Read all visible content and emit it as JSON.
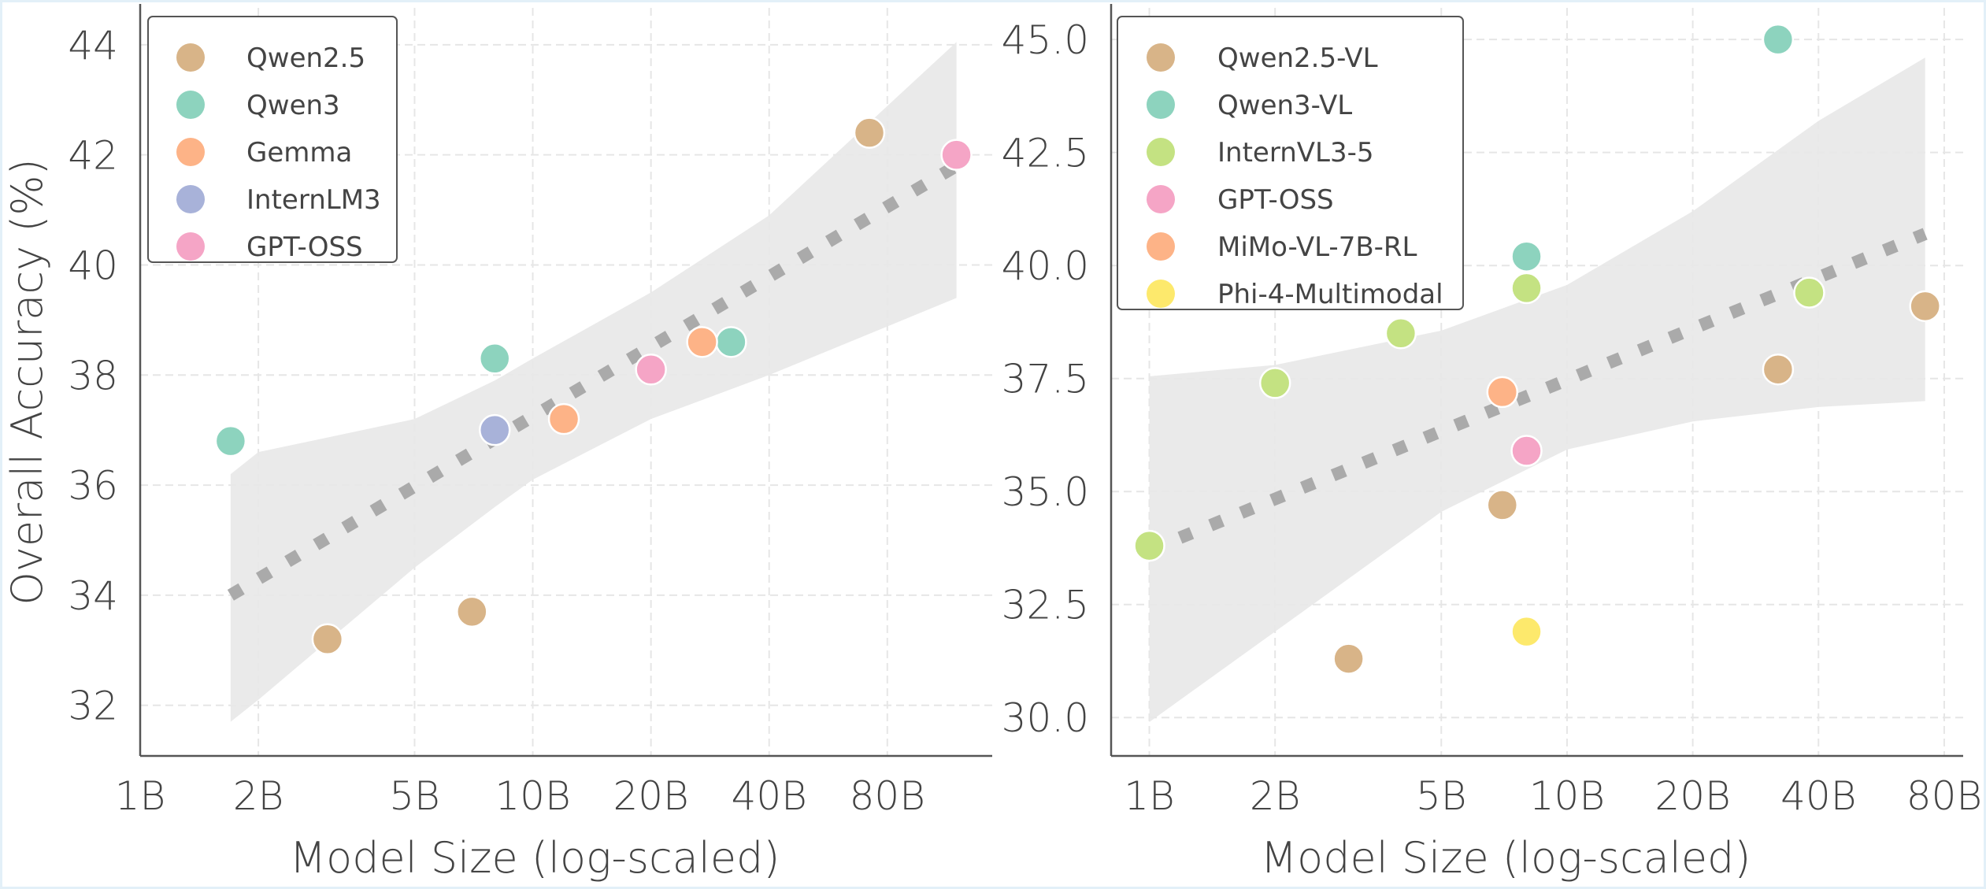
{
  "chart_data": [
    {
      "type": "scatter",
      "xlabel": "Model Size (log-scaled)",
      "ylabel": "Overall Accuracy (%)",
      "xscale": "log",
      "xlim": [
        1,
        148
      ],
      "ylim": [
        31.08,
        44.67
      ],
      "xticks": [
        1,
        2,
        5,
        10,
        20,
        40,
        80
      ],
      "xtick_labels": [
        "1B",
        "2B",
        "5B",
        "10B",
        "20B",
        "40B",
        "80B"
      ],
      "yticks": [
        32,
        34,
        36,
        38,
        40,
        42,
        44
      ],
      "ytick_labels": [
        "32",
        "34",
        "36",
        "38",
        "40",
        "42",
        "44"
      ],
      "grid": true,
      "legend_position": "top-left",
      "series": [
        {
          "name": "Qwen2.5",
          "color": "#d8b488",
          "points": [
            [
              3,
              33.2
            ],
            [
              7,
              33.7
            ],
            [
              72,
              42.4
            ]
          ]
        },
        {
          "name": "Qwen3",
          "color": "#8dd3be",
          "points": [
            [
              1.7,
              36.8
            ],
            [
              8,
              38.3
            ],
            [
              32,
              38.6
            ]
          ]
        },
        {
          "name": "Gemma",
          "color": "#fdb387",
          "points": [
            [
              12,
              37.2
            ],
            [
              27,
              38.6
            ]
          ]
        },
        {
          "name": "InternLM3",
          "color": "#a8b2d9",
          "points": [
            [
              8,
              37.0
            ]
          ]
        },
        {
          "name": "GPT-OSS",
          "color": "#f5a5c6",
          "points": [
            [
              20,
              38.1
            ],
            [
              120,
              42.0
            ]
          ]
        }
      ],
      "trend": {
        "x": [
          1.7,
          120
        ],
        "y": [
          34.0,
          41.8
        ]
      },
      "band": {
        "x": [
          1.7,
          2,
          5,
          8,
          10,
          20,
          40,
          120
        ],
        "lower": [
          31.7,
          32.1,
          34.5,
          35.6,
          36.1,
          37.2,
          38.0,
          39.4
        ],
        "upper": [
          36.2,
          36.6,
          37.2,
          37.9,
          38.3,
          39.5,
          40.9,
          44.05
        ]
      }
    },
    {
      "type": "scatter",
      "xlabel": "Model Size (log-scaled)",
      "ylabel": "",
      "xscale": "log",
      "xlim": [
        0.81,
        88.8
      ],
      "ylim": [
        29.15,
        45.7
      ],
      "xticks": [
        1,
        2,
        5,
        10,
        20,
        40,
        80
      ],
      "xtick_labels": [
        "1B",
        "2B",
        "5B",
        "10B",
        "20B",
        "40B",
        "80B"
      ],
      "yticks": [
        30,
        32.5,
        35,
        37.5,
        40,
        42.5,
        45
      ],
      "ytick_labels": [
        "30.0",
        "32.5",
        "35.0",
        "37.5",
        "40.0",
        "42.5",
        "45.0"
      ],
      "grid": true,
      "legend_position": "top-left",
      "series": [
        {
          "name": "Qwen2.5-VL",
          "color": "#d8b488",
          "points": [
            [
              3,
              31.3
            ],
            [
              7,
              34.7
            ],
            [
              32,
              37.7
            ],
            [
              72,
              39.1
            ]
          ]
        },
        {
          "name": "Qwen3-VL",
          "color": "#8dd3be",
          "points": [
            [
              8,
              40.2
            ],
            [
              32,
              45.0
            ]
          ]
        },
        {
          "name": "InternVL3-5",
          "color": "#c4e282",
          "points": [
            [
              1,
              33.8
            ],
            [
              2,
              37.4
            ],
            [
              4,
              38.5
            ],
            [
              8,
              39.5
            ],
            [
              38,
              39.4
            ]
          ]
        },
        {
          "name": "GPT-OSS",
          "color": "#f5a5c6",
          "points": [
            [
              8,
              35.9
            ]
          ]
        },
        {
          "name": "MiMo-VL-7B-RL",
          "color": "#fdb387",
          "points": [
            [
              7,
              37.2
            ]
          ]
        },
        {
          "name": "Phi-4-Multimodal",
          "color": "#fde96c",
          "points": [
            [
              8,
              31.9
            ]
          ]
        }
      ],
      "trend": {
        "x": [
          1,
          72
        ],
        "y": [
          33.7,
          40.7
        ]
      },
      "band": {
        "x": [
          1,
          2,
          5,
          10,
          20,
          40,
          72
        ],
        "lower": [
          29.9,
          31.9,
          34.55,
          35.93,
          36.55,
          36.87,
          37.0
        ],
        "upper": [
          37.55,
          37.8,
          38.56,
          39.57,
          41.2,
          43.2,
          44.6
        ]
      }
    }
  ]
}
